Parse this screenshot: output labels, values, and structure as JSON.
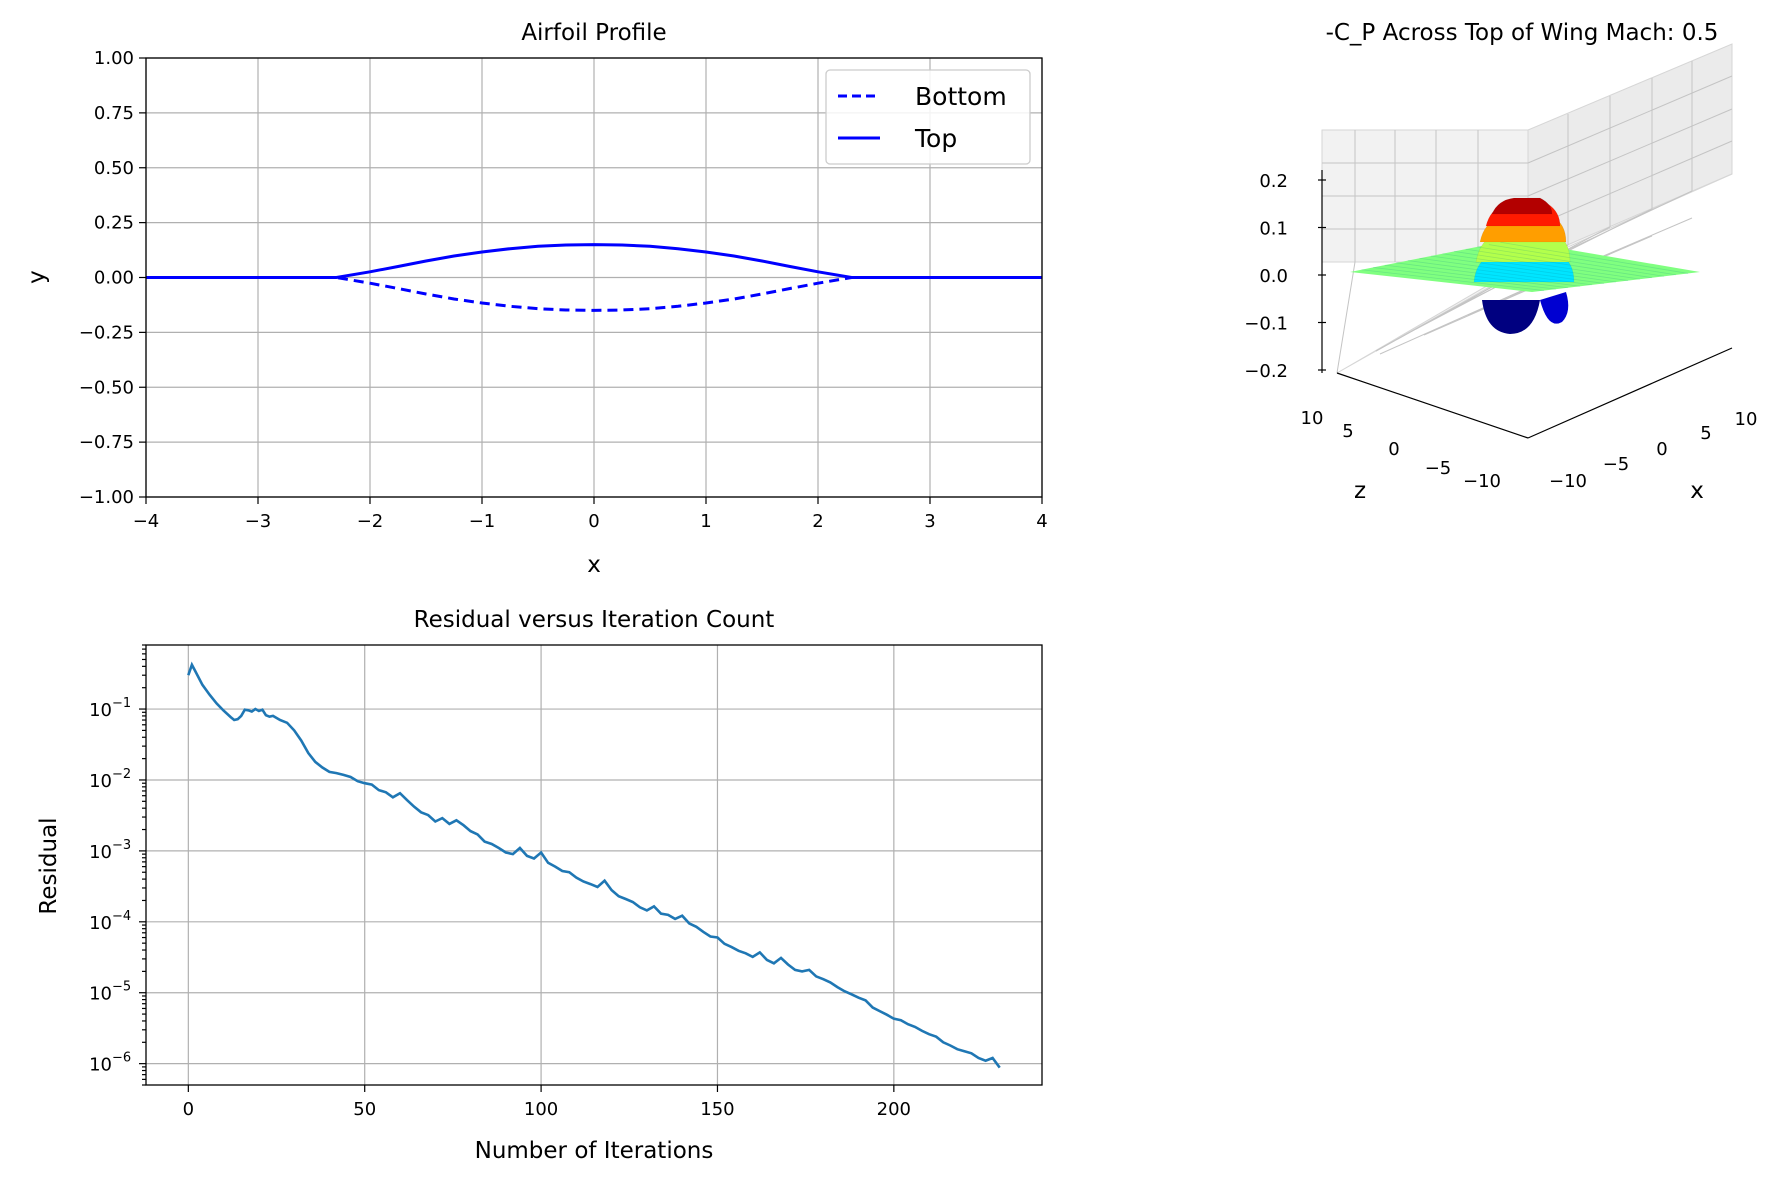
{
  "colors": {
    "airfoil": "#0000ff",
    "residual": "#1f77b4",
    "grid": "#b0b0b0",
    "colormap": "jet"
  },
  "chart_data": [
    {
      "id": "airfoil",
      "type": "line",
      "title": "Airfoil Profile",
      "xlabel": "x",
      "ylabel": "y",
      "xlim": [
        -4,
        4
      ],
      "ylim": [
        -1,
        1
      ],
      "xticks": [
        -4,
        -3,
        -2,
        -1,
        0,
        1,
        2,
        3,
        4
      ],
      "xtick_labels": [
        "−4",
        "−3",
        "−2",
        "−1",
        "0",
        "1",
        "2",
        "3",
        "4"
      ],
      "yticks": [
        1.0,
        0.75,
        0.5,
        0.25,
        0.0,
        -0.25,
        -0.5,
        -0.75,
        -1.0
      ],
      "ytick_labels": [
        "1.00",
        "0.75",
        "0.50",
        "0.25",
        "0.00",
        "−0.25",
        "−0.50",
        "−0.75",
        "−1.00"
      ],
      "grid": true,
      "legend_position": "top-right",
      "series": [
        {
          "name": "Bottom",
          "style": "dashed",
          "color": "#0000ff",
          "x": [
            -4,
            -2.3,
            -2.0,
            -1.75,
            -1.5,
            -1.25,
            -1.0,
            -0.75,
            -0.5,
            -0.25,
            0.0,
            0.25,
            0.5,
            0.75,
            1.0,
            1.25,
            1.5,
            1.75,
            2.0,
            2.3,
            4
          ],
          "y": [
            0,
            0,
            -0.026,
            -0.05,
            -0.075,
            -0.098,
            -0.116,
            -0.131,
            -0.142,
            -0.148,
            -0.15,
            -0.148,
            -0.142,
            -0.131,
            -0.116,
            -0.098,
            -0.075,
            -0.05,
            -0.026,
            0,
            0
          ]
        },
        {
          "name": "Top",
          "style": "solid",
          "color": "#0000ff",
          "x": [
            -4,
            -2.3,
            -2.0,
            -1.75,
            -1.5,
            -1.25,
            -1.0,
            -0.75,
            -0.5,
            -0.25,
            0.0,
            0.25,
            0.5,
            0.75,
            1.0,
            1.25,
            1.5,
            1.75,
            2.0,
            2.3,
            4
          ],
          "y": [
            0,
            0,
            0.026,
            0.05,
            0.075,
            0.098,
            0.116,
            0.131,
            0.142,
            0.148,
            0.15,
            0.148,
            0.142,
            0.131,
            0.116,
            0.098,
            0.075,
            0.05,
            0.026,
            0,
            0
          ]
        }
      ]
    },
    {
      "id": "cp3d",
      "type": "surface3d",
      "title": "-C_P Across Top of Wing Mach: 0.5",
      "xlabel": "x",
      "zlabel": "z",
      "xlim": [
        -10,
        10
      ],
      "zlim": [
        -10,
        10
      ],
      "vlim": [
        -0.2,
        0.2
      ],
      "xticks": [
        -10,
        -5,
        0,
        5,
        10
      ],
      "xtick_labels": [
        "−10",
        "−5",
        "0",
        "5",
        "10"
      ],
      "zticks": [
        -10,
        -5,
        0,
        5,
        10
      ],
      "ztick_labels": [
        "−10",
        "−5",
        "0",
        "5",
        "10"
      ],
      "vticks": [
        0.2,
        0.1,
        0.0,
        -0.1,
        -0.2
      ],
      "vtick_labels": [
        "0.2",
        "0.1",
        "0.0",
        "−0.1",
        "−0.2"
      ],
      "peak_value": 0.2,
      "trough_value": -0.1,
      "colormap": "jet"
    },
    {
      "id": "residual",
      "type": "line",
      "title": "Residual versus Iteration Count",
      "xlabel": "Number of Iterations",
      "ylabel": "Residual",
      "yscale": "log",
      "xlim": [
        -12,
        242
      ],
      "ylim": [
        5e-07,
        0.8
      ],
      "xticks": [
        0,
        50,
        100,
        150,
        200
      ],
      "xtick_labels": [
        "0",
        "50",
        "100",
        "150",
        "200"
      ],
      "yticks": [
        -1,
        -2,
        -3,
        -4,
        -5,
        -6
      ],
      "ytick_labels": [
        "10",
        "10",
        "10",
        "10",
        "10",
        "10"
      ],
      "ytick_exponents": [
        "−1",
        "−2",
        "−3",
        "−4",
        "−5",
        "−6"
      ],
      "grid": true,
      "series": [
        {
          "name": "",
          "color": "#1f77b4",
          "x": [
            0,
            1,
            2,
            4,
            6,
            8,
            10,
            12,
            13,
            14,
            15,
            16,
            17,
            18,
            19,
            20,
            21,
            22,
            23,
            24,
            26,
            28,
            30,
            32,
            34,
            36,
            38,
            40,
            42,
            44,
            46,
            48,
            50,
            52,
            54,
            56,
            58,
            60,
            62,
            64,
            66,
            68,
            70,
            72,
            74,
            76,
            78,
            80,
            82,
            84,
            86,
            88,
            90,
            92,
            94,
            96,
            98,
            100,
            102,
            104,
            106,
            108,
            110,
            112,
            114,
            116,
            118,
            120,
            122,
            124,
            126,
            128,
            130,
            132,
            134,
            136,
            138,
            140,
            142,
            144,
            146,
            148,
            150,
            152,
            154,
            156,
            158,
            160,
            162,
            164,
            166,
            168,
            170,
            172,
            174,
            176,
            178,
            180,
            182,
            184,
            186,
            188,
            190,
            192,
            194,
            196,
            198,
            200,
            202,
            204,
            206,
            208,
            210,
            212,
            214,
            216,
            218,
            220,
            222,
            224,
            226,
            228,
            230
          ],
          "y": [
            0.3,
            0.42,
            0.34,
            0.22,
            0.16,
            0.12,
            0.095,
            0.077,
            0.07,
            0.072,
            0.08,
            0.098,
            0.096,
            0.092,
            0.1,
            0.094,
            0.098,
            0.082,
            0.078,
            0.08,
            0.07,
            0.064,
            0.05,
            0.036,
            0.024,
            0.018,
            0.015,
            0.013,
            0.0125,
            0.0118,
            0.011,
            0.0096,
            0.009,
            0.0086,
            0.0072,
            0.0067,
            0.0057,
            0.0065,
            0.0052,
            0.0042,
            0.0035,
            0.0032,
            0.0026,
            0.0029,
            0.0024,
            0.0027,
            0.0023,
            0.0019,
            0.0017,
            0.00135,
            0.00125,
            0.0011,
            0.00095,
            0.0009,
            0.0011,
            0.00085,
            0.00078,
            0.00095,
            0.00068,
            0.0006,
            0.00052,
            0.0005,
            0.00042,
            0.00037,
            0.00034,
            0.00031,
            0.00038,
            0.00028,
            0.00023,
            0.00021,
            0.00019,
            0.00016,
            0.000145,
            0.000165,
            0.00013,
            0.000125,
            0.00011,
            0.000122,
            9.5e-05,
            8.5e-05,
            7.2e-05,
            6.2e-05,
            6e-05,
            4.9e-05,
            4.4e-05,
            3.9e-05,
            3.6e-05,
            3.2e-05,
            3.7e-05,
            2.9e-05,
            2.6e-05,
            3.1e-05,
            2.5e-05,
            2.1e-05,
            2e-05,
            2.1e-05,
            1.7e-05,
            1.55e-05,
            1.4e-05,
            1.2e-05,
            1.05e-05,
            9.5e-06,
            8.5e-06,
            7.8e-06,
            6.2e-06,
            5.5e-06,
            4.9e-06,
            4.3e-06,
            4.1e-06,
            3.6e-06,
            3.3e-06,
            2.9e-06,
            2.6e-06,
            2.4e-06,
            2e-06,
            1.8e-06,
            1.6e-06,
            1.5e-06,
            1.4e-06,
            1.2e-06,
            1.1e-06,
            1.2e-06,
            8.8e-07
          ]
        }
      ]
    }
  ]
}
